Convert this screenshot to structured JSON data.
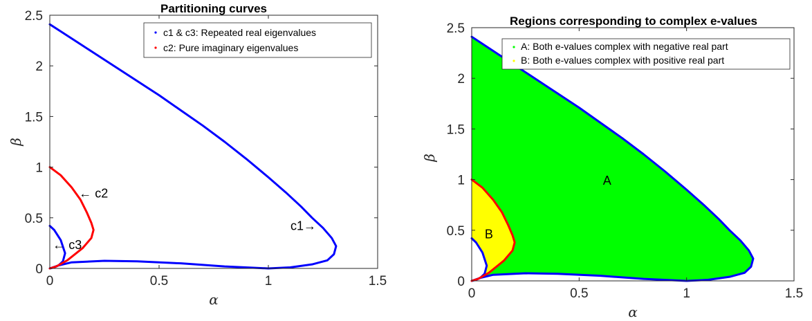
{
  "chart_data": [
    {
      "type": "line",
      "title": "Partitioning curves",
      "xlabel": "α",
      "ylabel": "β",
      "xlim": [
        0,
        1.5
      ],
      "ylim": [
        0,
        2.5
      ],
      "xticks": [
        "0",
        "0.5",
        "1",
        "1.5"
      ],
      "yticks": [
        "0",
        "0.5",
        "1",
        "1.5",
        "2",
        "2.5"
      ],
      "grid": false,
      "legend_position": "top-right",
      "legend": [
        {
          "label": "c1 & c3: Repeated real eigenvalues",
          "color": "#0000ff"
        },
        {
          "label": "c2: Pure imaginary eigenvalues",
          "color": "#ff0000"
        }
      ],
      "series": [
        {
          "color": "#0000ff",
          "x": [
            0,
            0.05,
            0.1,
            0.15,
            0.2,
            0.3,
            0.4,
            0.5,
            0.6,
            0.7,
            0.8,
            0.9,
            1.0,
            1.08,
            1.15,
            1.2,
            1.25,
            1.29,
            1.31,
            1.3,
            1.27,
            1.2,
            1.1,
            1.0,
            0.8,
            0.6,
            0.4,
            0.25,
            0.1,
            0.04,
            0
          ],
          "y": [
            2.41,
            2.34,
            2.27,
            2.2,
            2.13,
            1.99,
            1.85,
            1.71,
            1.56,
            1.41,
            1.25,
            1.08,
            0.9,
            0.75,
            0.61,
            0.5,
            0.4,
            0.3,
            0.22,
            0.14,
            0.08,
            0.04,
            0.01,
            0.0,
            0.02,
            0.05,
            0.07,
            0.075,
            0.06,
            0.03,
            0
          ]
        },
        {
          "color": "#0000ff",
          "x": [
            0,
            0.02,
            0.05,
            0.07,
            0.06,
            0.04,
            0.02,
            0
          ],
          "y": [
            0.42,
            0.38,
            0.28,
            0.15,
            0.07,
            0.03,
            0.01,
            0
          ]
        },
        {
          "color": "#ff0000",
          "x": [
            0,
            0.05,
            0.1,
            0.14,
            0.17,
            0.19,
            0.2,
            0.19,
            0.15,
            0.08,
            0.03,
            0
          ],
          "y": [
            1.0,
            0.92,
            0.8,
            0.68,
            0.55,
            0.45,
            0.38,
            0.3,
            0.2,
            0.08,
            0.02,
            0
          ]
        }
      ],
      "annotations": [
        {
          "text": "← c2",
          "x": 0.2,
          "y": 0.7
        },
        {
          "text": "c1→",
          "x": 1.16,
          "y": 0.38
        },
        {
          "text": "← c3",
          "x": 0.08,
          "y": 0.19
        }
      ]
    },
    {
      "type": "area",
      "title": "Regions corresponding to complex e-values",
      "xlabel": "α",
      "ylabel": "β",
      "xlim": [
        0,
        1.5
      ],
      "ylim": [
        0,
        2.5
      ],
      "xticks": [
        "0",
        "0.5",
        "1",
        "1.5"
      ],
      "yticks": [
        "0",
        "0.5",
        "1",
        "1.5",
        "2",
        "2.5"
      ],
      "grid": false,
      "legend_position": "top-right",
      "legend": [
        {
          "label": "A: Both e-values complex with negative real part",
          "color": "#00ff00"
        },
        {
          "label": "B: Both e-values complex with positive real part",
          "color": "#ffff00"
        }
      ],
      "regions": [
        {
          "name": "A",
          "fill": "#00ff00"
        },
        {
          "name": "B",
          "fill": "#ffff00"
        }
      ],
      "annotations": [
        {
          "text": "A",
          "x": 0.63,
          "y": 0.95
        },
        {
          "text": "B",
          "x": 0.08,
          "y": 0.42
        }
      ]
    }
  ]
}
